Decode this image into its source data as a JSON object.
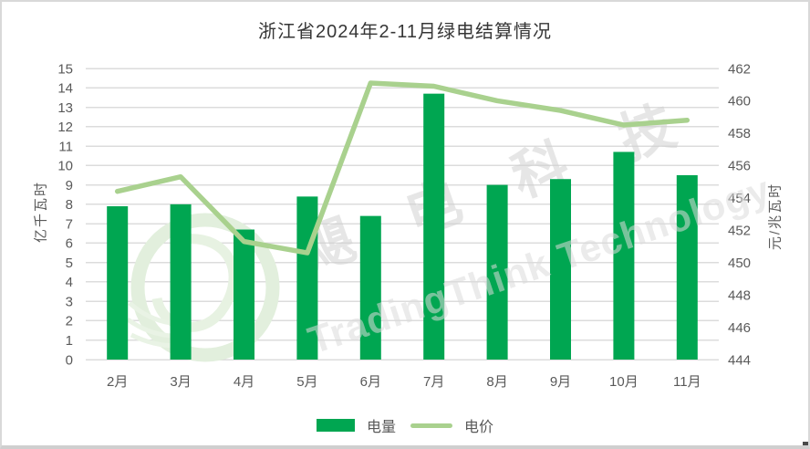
{
  "chart_data": {
    "type": "combo",
    "title": "浙江省2024年2-11月绿电结算情况",
    "categories": [
      "2月",
      "3月",
      "4月",
      "5月",
      "6月",
      "7月",
      "8月",
      "9月",
      "10月",
      "11月"
    ],
    "series": [
      {
        "name": "电量",
        "type": "bar",
        "axis": "left",
        "color": "#00a651",
        "values": [
          7.9,
          8.0,
          6.7,
          8.4,
          7.4,
          13.7,
          9.0,
          9.3,
          10.7,
          9.5
        ]
      },
      {
        "name": "电价",
        "type": "line",
        "axis": "right",
        "color": "#a9d18e",
        "values": [
          454.4,
          455.3,
          451.3,
          450.6,
          461.1,
          460.9,
          460.0,
          459.4,
          458.5,
          458.8
        ]
      }
    ],
    "left_axis": {
      "title": "亿千瓦时",
      "min": 0,
      "max": 15,
      "step": 1
    },
    "right_axis": {
      "title": "元/兆瓦时",
      "min": 444,
      "max": 462,
      "step": 2
    },
    "grid": true,
    "legend_position": "bottom"
  },
  "watermark": {
    "chinese": "飓电科技",
    "english": "TradingThink Technology"
  },
  "colors": {
    "bar": "#00a651",
    "line": "#a9d18e",
    "grid": "#dcdcdc",
    "tick_text": "#595959",
    "title_text": "#363636",
    "watermark_logo": "#e2efdd"
  }
}
